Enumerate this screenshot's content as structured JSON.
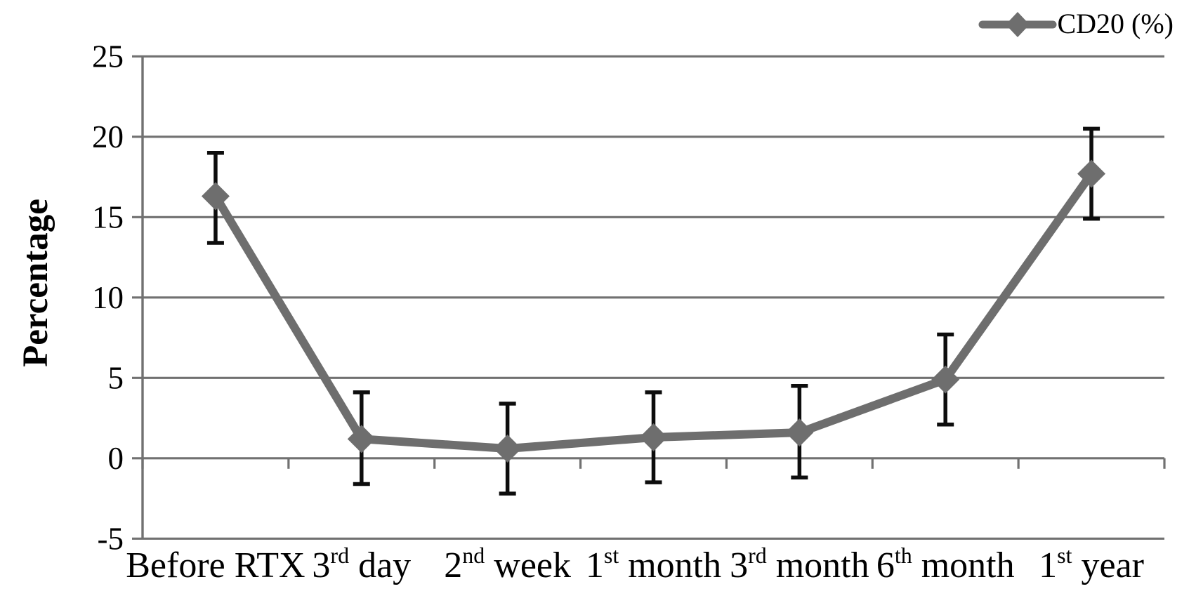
{
  "chart_data": {
    "type": "line",
    "title": "",
    "xlabel": "",
    "ylabel": "Percentage",
    "categories": [
      "Before RTX",
      "3rd day",
      "2nd week",
      "1st month",
      "3rd month",
      "6th month",
      "1st year"
    ],
    "categories_rich": [
      {
        "base": "Before RTX",
        "sup": "",
        "rest": ""
      },
      {
        "base": "3",
        "sup": "rd",
        "rest": " day"
      },
      {
        "base": "2",
        "sup": "nd",
        "rest": " week"
      },
      {
        "base": "1",
        "sup": "st",
        "rest": " month"
      },
      {
        "base": "3",
        "sup": "rd",
        "rest": " month"
      },
      {
        "base": "6",
        "sup": "th",
        "rest": " month"
      },
      {
        "base": "1",
        "sup": "st",
        "rest": " year"
      }
    ],
    "series": [
      {
        "name": "CD20 (%)",
        "values": [
          16.3,
          1.2,
          0.6,
          1.3,
          1.6,
          4.9,
          17.7
        ],
        "error_upper": [
          19.0,
          4.1,
          3.4,
          4.1,
          4.5,
          7.7,
          20.5
        ],
        "error_lower": [
          13.4,
          -1.6,
          -2.2,
          -1.5,
          -1.2,
          2.1,
          14.9
        ]
      }
    ],
    "ylim": [
      -5,
      25
    ],
    "yticks": [
      -5,
      0,
      5,
      10,
      15,
      20,
      25
    ],
    "ytick_step": 5,
    "grid": true,
    "error_bars": true,
    "marker": "diamond",
    "legend_position": "top-right",
    "colors": {
      "series": "#6e6e6e",
      "gridline": "#717171",
      "axis": "#717171",
      "error_bar": "#0d0d0d",
      "text": "#000000",
      "background": "#ffffff"
    }
  }
}
